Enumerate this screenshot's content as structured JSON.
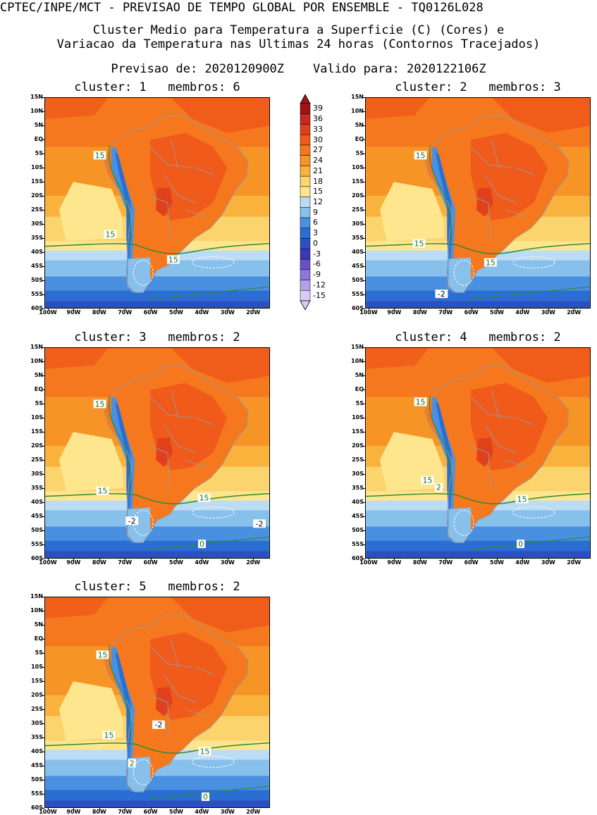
{
  "header": {
    "line1": "CPTEC/INPE/MCT - PREVISAO DE TEMPO GLOBAL POR ENSEMBLE - TQ0126L028",
    "line2": "Cluster Medio para Temperatura a Superficie (C) (Cores) e",
    "line3": "Variacao da Temperatura nas Ultimas 24 horas (Contornos Tracejados)",
    "line4": "Previsao de: 2020120900Z    Valido para: 2020122106Z"
  },
  "axes": {
    "lat_labels": [
      "15N",
      "10N",
      "5N",
      "EQ",
      "5S",
      "10S",
      "15S",
      "20S",
      "25S",
      "30S",
      "35S",
      "40S",
      "45S",
      "50S",
      "55S",
      "60S"
    ],
    "lon_labels": [
      "100W",
      "90W",
      "80W",
      "70W",
      "60W",
      "50W",
      "40W",
      "30W",
      "20W"
    ]
  },
  "colorbar": {
    "levels": [
      "39",
      "36",
      "33",
      "30",
      "27",
      "24",
      "21",
      "18",
      "15",
      "12",
      "9",
      "6",
      "3",
      "0",
      "-3",
      "-6",
      "-9",
      "-12",
      "-15"
    ],
    "colors": [
      "#a01414",
      "#c42a22",
      "#e0401c",
      "#f05a1a",
      "#f5781e",
      "#f79426",
      "#f9b23c",
      "#fbd46e",
      "#fde68e",
      "#bcdcf4",
      "#88c0ec",
      "#4a90e0",
      "#2a6ed4",
      "#2a50c4",
      "#3a38b4",
      "#6a50c8",
      "#8c78d8",
      "#b4a0e8",
      "#d8ccf4"
    ]
  },
  "panels": [
    {
      "title": "cluster: 1   membros: 6",
      "labels": [
        {
          "text": "15",
          "x": 78,
          "y": 82
        },
        {
          "text": "15",
          "x": 93,
          "y": 195
        },
        {
          "text": "15",
          "x": 183,
          "y": 231
        }
      ]
    },
    {
      "title": "cluster: 2   membros: 3",
      "labels": [
        {
          "text": "15",
          "x": 78,
          "y": 82
        },
        {
          "text": "15",
          "x": 76,
          "y": 208
        },
        {
          "text": "15",
          "x": 178,
          "y": 235
        },
        {
          "text": "-2",
          "x": 108,
          "y": 280
        }
      ]
    },
    {
      "title": "cluster: 3   membros: 2",
      "labels": [
        {
          "text": "15",
          "x": 78,
          "y": 80
        },
        {
          "text": "15",
          "x": 82,
          "y": 204
        },
        {
          "text": "15",
          "x": 227,
          "y": 214
        },
        {
          "text": "-2",
          "x": 124,
          "y": 247
        },
        {
          "text": "-2",
          "x": 306,
          "y": 251
        },
        {
          "text": "0",
          "x": 224,
          "y": 280
        }
      ]
    },
    {
      "title": "cluster: 4   membros: 2",
      "labels": [
        {
          "text": "15",
          "x": 78,
          "y": 77
        },
        {
          "text": "15",
          "x": 88,
          "y": 189
        },
        {
          "text": "2",
          "x": 104,
          "y": 199
        },
        {
          "text": "15",
          "x": 223,
          "y": 216
        },
        {
          "text": "0",
          "x": 221,
          "y": 280
        }
      ]
    },
    {
      "title": "cluster: 5   membros: 2",
      "labels": [
        {
          "text": "15",
          "x": 82,
          "y": 82
        },
        {
          "text": "15",
          "x": 91,
          "y": 197
        },
        {
          "text": "-2",
          "x": 162,
          "y": 182
        },
        {
          "text": "2",
          "x": 124,
          "y": 237
        },
        {
          "text": "15",
          "x": 228,
          "y": 220
        },
        {
          "text": "0",
          "x": 229,
          "y": 285
        }
      ]
    }
  ]
}
